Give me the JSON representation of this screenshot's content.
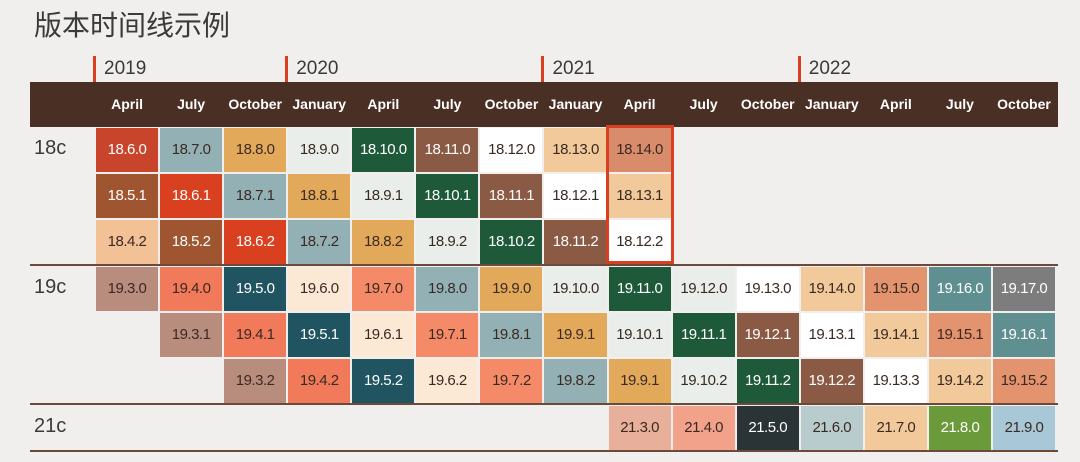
{
  "header": {
    "title": "版本时间线示例"
  },
  "timeline": {
    "years": [
      "2019",
      null,
      null,
      "2020",
      null,
      null,
      null,
      "2021",
      null,
      null,
      null,
      "2022",
      null,
      null,
      null
    ],
    "months": [
      "April",
      "July",
      "October",
      "January",
      "April",
      "July",
      "October",
      "January",
      "April",
      "July",
      "October",
      "January",
      "April",
      "July",
      "October"
    ],
    "groups": [
      {
        "label": "18c",
        "lines": [
          [
            {
              "text": "18.6.0",
              "color": "#c8442a"
            },
            {
              "text": "18.7.0",
              "color": "#93b1b4"
            },
            {
              "text": "18.8.0",
              "color": "#e3a95a"
            },
            {
              "text": "18.9.0",
              "color": "#e9eeea"
            },
            {
              "text": "18.10.0",
              "color": "#1e5a3a"
            },
            {
              "text": "18.11.0",
              "color": "#8b5a44"
            },
            {
              "text": "18.12.0",
              "color": "#ffffff"
            },
            {
              "text": "18.13.0",
              "color": "#f1c99a"
            },
            {
              "text": "18.14.0",
              "color": "#d98c6c"
            },
            null,
            null,
            null,
            null,
            null,
            null
          ],
          [
            {
              "text": "18.5.1",
              "color": "#9f552f"
            },
            {
              "text": "18.6.1",
              "color": "#d9401f"
            },
            {
              "text": "18.7.1",
              "color": "#93b1b4"
            },
            {
              "text": "18.8.1",
              "color": "#e3a95a"
            },
            {
              "text": "18.9.1",
              "color": "#e9eeea"
            },
            {
              "text": "18.10.1",
              "color": "#1e5a3a"
            },
            {
              "text": "18.11.1",
              "color": "#8b5a44"
            },
            {
              "text": "18.12.1",
              "color": "#ffffff"
            },
            {
              "text": "18.13.1",
              "color": "#f1c99a"
            },
            null,
            null,
            null,
            null,
            null,
            null
          ],
          [
            {
              "text": "18.4.2",
              "color": "#f2c196"
            },
            {
              "text": "18.5.2",
              "color": "#9f552f"
            },
            {
              "text": "18.6.2",
              "color": "#d9401f"
            },
            {
              "text": "18.7.2",
              "color": "#93b1b4"
            },
            {
              "text": "18.8.2",
              "color": "#e3a95a"
            },
            {
              "text": "18.9.2",
              "color": "#e9eeea"
            },
            {
              "text": "18.10.2",
              "color": "#1e5a3a"
            },
            {
              "text": "18.11.2",
              "color": "#8b5a44"
            },
            {
              "text": "18.12.2",
              "color": "#ffffff"
            },
            null,
            null,
            null,
            null,
            null,
            null
          ]
        ]
      },
      {
        "label": "19c",
        "lines": [
          [
            {
              "text": "19.3.0",
              "color": "#b98d7d"
            },
            {
              "text": "19.4.0",
              "color": "#f07a5a"
            },
            {
              "text": "19.5.0",
              "color": "#1f5460"
            },
            {
              "text": "19.6.0",
              "color": "#fbe9d6"
            },
            {
              "text": "19.7.0",
              "color": "#f58a68"
            },
            {
              "text": "19.8.0",
              "color": "#93b1b4"
            },
            {
              "text": "19.9.0",
              "color": "#e3a95a"
            },
            {
              "text": "19.10.0",
              "color": "#e9eeea"
            },
            {
              "text": "19.11.0",
              "color": "#1e5a3a"
            },
            {
              "text": "19.12.0",
              "color": "#e9eeea"
            },
            {
              "text": "19.13.0",
              "color": "#ffffff"
            },
            {
              "text": "19.14.0",
              "color": "#f1c99a"
            },
            {
              "text": "19.15.0",
              "color": "#e4936f"
            },
            {
              "text": "19.16.0",
              "color": "#5f8f90"
            },
            {
              "text": "19.17.0",
              "color": "#7d7d7d"
            }
          ],
          [
            null,
            {
              "text": "19.3.1",
              "color": "#b98d7d"
            },
            {
              "text": "19.4.1",
              "color": "#f07a5a"
            },
            {
              "text": "19.5.1",
              "color": "#1f5460"
            },
            {
              "text": "19.6.1",
              "color": "#fbe9d6"
            },
            {
              "text": "19.7.1",
              "color": "#f58a68"
            },
            {
              "text": "19.8.1",
              "color": "#93b1b4"
            },
            {
              "text": "19.9.1",
              "color": "#e3a95a"
            },
            {
              "text": "19.10.1",
              "color": "#e9eeea"
            },
            {
              "text": "19.11.1",
              "color": "#1e5a3a"
            },
            {
              "text": "19.12.1",
              "color": "#8b5a44"
            },
            {
              "text": "19.13.1",
              "color": "#ffffff"
            },
            {
              "text": "19.14.1",
              "color": "#f1c99a"
            },
            {
              "text": "19.15.1",
              "color": "#e4936f"
            },
            {
              "text": "19.16.1",
              "color": "#5f8f90"
            }
          ],
          [
            null,
            null,
            {
              "text": "19.3.2",
              "color": "#b98d7d"
            },
            {
              "text": "19.4.2",
              "color": "#f07a5a"
            },
            {
              "text": "19.5.2",
              "color": "#1f5460"
            },
            {
              "text": "19.6.2",
              "color": "#fbe9d6"
            },
            {
              "text": "19.7.2",
              "color": "#f58a68"
            },
            {
              "text": "19.8.2",
              "color": "#93b1b4"
            },
            {
              "text": "19.9.1",
              "color": "#e3a95a"
            },
            {
              "text": "19.10.2",
              "color": "#e9eeea"
            },
            {
              "text": "19.11.2",
              "color": "#1e5a3a"
            },
            {
              "text": "19.12.2",
              "color": "#8b5a44"
            },
            {
              "text": "19.13.3",
              "color": "#ffffff"
            },
            {
              "text": "19.14.2",
              "color": "#f1c99a"
            },
            {
              "text": "19.15.2",
              "color": "#e4936f"
            }
          ]
        ]
      },
      {
        "label": "21c",
        "lines": [
          [
            null,
            null,
            null,
            null,
            null,
            null,
            null,
            null,
            {
              "text": "21.3.0",
              "color": "#e8b09a"
            },
            {
              "text": "21.4.0",
              "color": "#f2a28a"
            },
            {
              "text": "21.5.0",
              "color": "#2a3436"
            },
            {
              "text": "21.6.0",
              "color": "#b9cccd"
            },
            {
              "text": "21.7.0",
              "color": "#f1c99a"
            },
            {
              "text": "21.8.0",
              "color": "#6b9a3a"
            },
            {
              "text": "21.9.0",
              "color": "#a8c8d8"
            }
          ]
        ]
      }
    ]
  }
}
